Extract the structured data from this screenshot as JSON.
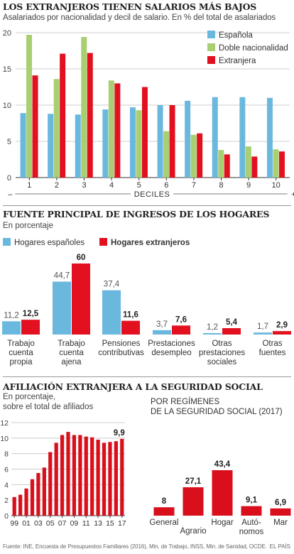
{
  "colors": {
    "espanola": "#6bb8de",
    "doble": "#a8cf72",
    "extranjera": "#e3101f",
    "hog_esp": "#6bb8de",
    "hog_ext": "#e3101f",
    "afil": "#d90f1c",
    "text": "#222222",
    "muted": "#555555",
    "grid": "#cccccc",
    "rule": "#222222"
  },
  "section1": {
    "title": "LOS EXTRANJEROS TIENEN SALARIOS MÁS BAJOS",
    "subtitle": "Asalariados por nacionalidad y decil de salario. En % del total de asalariados",
    "axis_title": "DECILES",
    "axis_minus": "–",
    "axis_plus": "+"
  },
  "section2": {
    "title": "FUENTE PRINCIPAL DE INGRESOS DE LOS HOGARES",
    "subtitle": "En porcentaje"
  },
  "section3": {
    "title": "AFILIACIÓN EXTRANJERA A LA SEGURIDAD SOCIAL",
    "subtitle_line1": "En porcentaje,",
    "subtitle_line2": "sobre el total de afiliados",
    "right_title_line1": "POR REGÍMENES",
    "right_title_line2": "DE LA SEGURIDAD SOCIAL (2017)"
  },
  "footer": {
    "source": "Fuente: INE, Encuesta de Presupuestos Familiares (2016), Min. de Trabajo, INSS, Min. de Sanidad, OCDE.",
    "credit": "EL PAÍS"
  },
  "chart_data": [
    {
      "type": "bar",
      "title": "LOS EXTRANJEROS TIENEN SALARIOS MÁS BAJOS",
      "subtitle": "Asalariados por nacionalidad y decil de salario. En % del total de asalariados",
      "xlabel": "DECILES",
      "categories": [
        "1",
        "2",
        "3",
        "4",
        "5",
        "6",
        "7",
        "8",
        "9",
        "10"
      ],
      "ylim": [
        0,
        20
      ],
      "yticks": [
        0,
        5,
        10,
        15,
        20
      ],
      "grid": true,
      "legend_position": "top-right",
      "series": [
        {
          "name": "Española",
          "values": [
            8.9,
            8.8,
            8.7,
            9.4,
            9.7,
            10.0,
            10.6,
            11.1,
            11.1,
            11.0
          ]
        },
        {
          "name": "Doble nacionalidad",
          "values": [
            19.7,
            13.6,
            19.4,
            13.4,
            9.3,
            6.4,
            5.9,
            3.8,
            4.3,
            3.9
          ]
        },
        {
          "name": "Extranjera",
          "values": [
            14.1,
            17.1,
            17.2,
            13.0,
            12.5,
            10.0,
            6.1,
            3.2,
            2.9,
            3.6
          ]
        }
      ]
    },
    {
      "type": "bar",
      "title": "FUENTE PRINCIPAL DE INGRESOS DE LOS HOGARES",
      "subtitle": "En porcentaje",
      "legend_position": "top-left",
      "categories": [
        [
          "Trabajo",
          "cuenta",
          "propia"
        ],
        [
          "Trabajo",
          "cuenta",
          "ajena"
        ],
        [
          "Pensiones",
          "contributivas"
        ],
        [
          "Prestaciones",
          "desempleo"
        ],
        [
          "Otras",
          "prestaciones",
          "sociales"
        ],
        [
          "Otras",
          "fuentes"
        ]
      ],
      "series": [
        {
          "name": "Hogares españoles",
          "values": [
            11.2,
            44.7,
            37.4,
            3.7,
            1.2,
            1.7
          ],
          "labels": [
            "11,2",
            "44,7",
            "37,4",
            "3,7",
            "1,2",
            "1,7"
          ]
        },
        {
          "name": "Hogares extranjeros",
          "values": [
            12.5,
            60,
            11.6,
            7.6,
            5.4,
            2.9
          ],
          "labels": [
            "12,5",
            "60",
            "11,6",
            "7,6",
            "5,4",
            "2,9"
          ]
        }
      ]
    },
    {
      "type": "bar",
      "title": "AFILIACIÓN EXTRANJERA A LA SEGURIDAD SOCIAL",
      "subtitle": "En porcentaje, sobre el total de afiliados",
      "x": [
        1999,
        2000,
        2001,
        2002,
        2003,
        2004,
        2005,
        2006,
        2007,
        2008,
        2009,
        2010,
        2011,
        2012,
        2013,
        2014,
        2015,
        2016,
        2017
      ],
      "x_tick_labels": [
        "99",
        "01",
        "03",
        "05",
        "07",
        "09",
        "11",
        "13",
        "15",
        "17"
      ],
      "values": [
        2.4,
        2.7,
        3.5,
        4.7,
        5.5,
        6.2,
        8.2,
        9.4,
        10.4,
        10.8,
        10.4,
        10.4,
        10.2,
        10.1,
        9.8,
        9.4,
        9.5,
        9.6,
        9.9
      ],
      "end_label": "9,9",
      "ylim": [
        0,
        12
      ],
      "yticks": [
        0,
        2,
        4,
        6,
        8,
        10,
        12
      ],
      "grid": true
    },
    {
      "type": "bar",
      "title": "POR REGÍMENES DE LA SEGURIDAD SOCIAL (2017)",
      "categories": [
        [
          "General"
        ],
        [
          "Agrario"
        ],
        [
          "Hogar"
        ],
        [
          "Autó-",
          "nomos"
        ],
        [
          "Mar"
        ]
      ],
      "values": [
        8,
        27.1,
        43.4,
        9.1,
        6.9
      ],
      "labels": [
        "8",
        "27,1",
        "43,4",
        "9,1",
        "6,9"
      ]
    }
  ]
}
